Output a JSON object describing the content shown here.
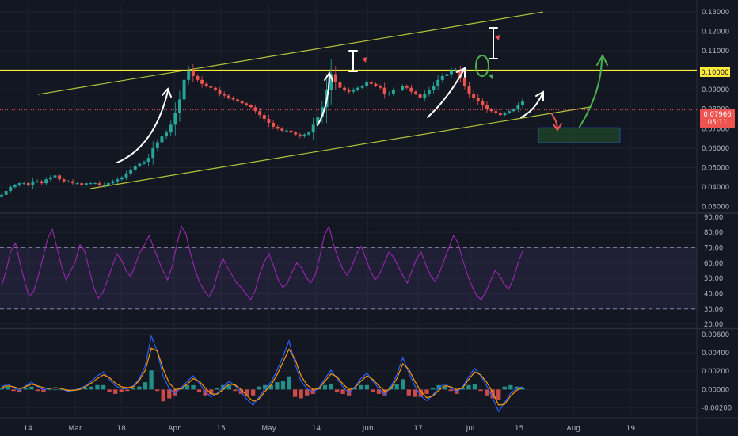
{
  "chart_data": [
    {
      "type": "candlestick",
      "title": "",
      "panel": "price",
      "price_scale": {
        "ticks": [
          "0.13000",
          "0.12000",
          "0.11000",
          "0.10000",
          "0.09000",
          "0.08000",
          "0.07000",
          "0.06000",
          "0.05000",
          "0.04000",
          "0.03000"
        ],
        "ylim": [
          0.027,
          0.134
        ]
      },
      "current_price": {
        "label": "0.07966",
        "value": 0.07966,
        "countdown": "05:11",
        "color": "#ef5350"
      },
      "horizontal_level": {
        "label": "0.10000",
        "value": 0.1,
        "color": "#ffeb3b"
      },
      "series": [
        {
          "name": "",
          "values": [
            0.036,
            0.038,
            0.04,
            0.041,
            0.042,
            0.042,
            0.041,
            0.043,
            0.043,
            0.042,
            0.044,
            0.045,
            0.046,
            0.044,
            0.043,
            0.043,
            0.042,
            0.042,
            0.041,
            0.042,
            0.042,
            0.042,
            0.041,
            0.041,
            0.042,
            0.043,
            0.044,
            0.045,
            0.047,
            0.049,
            0.051,
            0.052,
            0.053,
            0.055,
            0.06,
            0.063,
            0.066,
            0.068,
            0.072,
            0.078,
            0.085,
            0.095,
            0.1,
            0.097,
            0.095,
            0.093,
            0.092,
            0.091,
            0.09,
            0.088,
            0.087,
            0.086,
            0.085,
            0.084,
            0.083,
            0.082,
            0.081,
            0.079,
            0.077,
            0.075,
            0.073,
            0.071,
            0.07,
            0.069,
            0.069,
            0.068,
            0.067,
            0.066,
            0.067,
            0.068,
            0.072,
            0.076,
            0.081,
            0.09,
            0.098,
            0.094,
            0.091,
            0.09,
            0.089,
            0.09,
            0.091,
            0.092,
            0.094,
            0.093,
            0.092,
            0.091,
            0.088,
            0.088,
            0.09,
            0.09,
            0.092,
            0.091,
            0.089,
            0.088,
            0.086,
            0.088,
            0.09,
            0.092,
            0.095,
            0.097,
            0.098,
            0.1,
            0.1,
            0.096,
            0.092,
            0.088,
            0.086,
            0.084,
            0.082,
            0.08,
            0.079,
            0.078,
            0.077,
            0.078,
            0.079,
            0.08,
            0.082,
            0.084
          ]
        }
      ],
      "channel": {
        "upper_line": {
          "from": [
            0.45,
            0.088
          ],
          "to": [
            1,
            0.133
          ]
        }
      },
      "annotations": [
        "arrows",
        "range-markers",
        "target-box"
      ]
    },
    {
      "type": "line",
      "panel": "rsi",
      "ticks": [
        "90.00",
        "80.00",
        "70.00",
        "60.00",
        "50.00",
        "40.00",
        "30.00",
        "20.00"
      ],
      "ylim": [
        18,
        92
      ],
      "bands": {
        "upper": 70,
        "lower": 30
      },
      "color": "#9c27b0",
      "series": [
        {
          "name": "",
          "values": [
            45,
            55,
            68,
            73,
            60,
            48,
            38,
            42,
            52,
            64,
            76,
            82,
            70,
            58,
            49,
            55,
            61,
            72,
            68,
            56,
            44,
            37,
            41,
            49,
            58,
            66,
            62,
            55,
            51,
            59,
            67,
            72,
            78,
            70,
            62,
            55,
            49,
            58,
            72,
            84,
            79,
            66,
            55,
            47,
            42,
            38,
            44,
            55,
            63,
            57,
            52,
            47,
            44,
            40,
            36,
            42,
            53,
            61,
            66,
            58,
            49,
            44,
            47,
            54,
            60,
            57,
            51,
            47,
            52,
            64,
            78,
            84,
            72,
            63,
            56,
            52,
            58,
            66,
            71,
            63,
            55,
            49,
            53,
            60,
            67,
            64,
            58,
            52,
            47,
            55,
            63,
            67,
            59,
            52,
            48,
            54,
            62,
            70,
            78,
            73,
            62,
            53,
            45,
            39,
            36,
            41,
            48,
            55,
            52,
            46,
            43,
            50,
            60,
            68
          ]
        }
      ]
    },
    {
      "type": "line",
      "panel": "macd",
      "ticks": [
        "0.00600",
        "0.00400",
        "0.00200",
        "0.00000",
        "-0.00200"
      ],
      "ylim": [
        -0.0029,
        0.0065
      ],
      "series": [
        {
          "name": "",
          "color": "#2962ff",
          "values": [
            0.0003,
            0.0006,
            0.0002,
            -0.0001,
            0.0004,
            0.0008,
            0.0003,
            0,
            0.0001,
            0.0002,
            0.0001,
            -0.0002,
            -0.0001,
            0.0001,
            0.0004,
            0.0009,
            0.0015,
            0.0019,
            0.0011,
            0.0004,
            0.0001,
            0.0001,
            0.0004,
            0.0012,
            0.0026,
            0.0058,
            0.0041,
            0.0014,
            0.0001,
            -0.0004,
            0.0002,
            0.0009,
            0.0015,
            0.0007,
            -0.0002,
            -0.0008,
            -0.0004,
            0.0003,
            0.0009,
            0.0004,
            -0.0003,
            -0.0011,
            -0.0017,
            -0.0008,
            0.0001,
            0.0008,
            0.0021,
            0.0036,
            0.0053,
            0.0028,
            0.0009,
            0.0001,
            -0.0003,
            0.0002,
            0.0012,
            0.0021,
            0.0012,
            0.0003,
            -0.0004,
            0.0003,
            0.0012,
            0.0018,
            0.0009,
            0.0001,
            -0.0006,
            0.0003,
            0.0016,
            0.0035,
            0.0018,
            0.0004,
            -0.0007,
            -0.0012,
            -0.0006,
            0.0002,
            0.0006,
            0.0002,
            -0.0003,
            0.0003,
            0.0014,
            0.0023,
            0.0015,
            0.0004,
            -0.0009,
            -0.0024,
            -0.0014,
            -0.0004,
            0.0001,
            0.0003
          ]
        },
        {
          "name": "",
          "color": "#ff9800",
          "values": [
            0.0002,
            0.0004,
            0.0003,
            0.0001,
            0.0003,
            0.0006,
            0.0004,
            0.0002,
            0.0001,
            0.0002,
            0.0001,
            -0.0001,
            -0.0001,
            0,
            0.0003,
            0.0007,
            0.0012,
            0.0016,
            0.0013,
            0.0007,
            0.0003,
            0.0002,
            0.0003,
            0.001,
            0.0021,
            0.0045,
            0.0042,
            0.0022,
            0.0007,
            0,
            0.0001,
            0.0006,
            0.0012,
            0.0009,
            0.0002,
            -0.0005,
            -0.0005,
            0,
            0.0006,
            0.0005,
            0,
            -0.0007,
            -0.0013,
            -0.001,
            -0.0002,
            0.0005,
            0.0016,
            0.003,
            0.0044,
            0.0033,
            0.0015,
            0.0005,
            0,
            0.0001,
            0.0009,
            0.0017,
            0.0014,
            0.0006,
            0,
            0.0002,
            0.0009,
            0.0015,
            0.0011,
            0.0004,
            -0.0002,
            0.0001,
            0.0012,
            0.0028,
            0.0022,
            0.0009,
            -0.0002,
            -0.0009,
            -0.0007,
            -0.0001,
            0.0004,
            0.0003,
            0,
            0.0002,
            0.0011,
            0.0019,
            0.0016,
            0.0008,
            -0.0003,
            -0.0017,
            -0.0016,
            -0.0007,
            -0.0001,
            0.0002
          ]
        }
      ]
    }
  ],
  "time_axis": {
    "labels": [
      "14",
      "Mar",
      "18",
      "Apr",
      "15",
      "May",
      "14",
      "Jun",
      "17",
      "Jul",
      "15",
      "Aug",
      "19"
    ],
    "positions": [
      0.04,
      0.108,
      0.174,
      0.25,
      0.317,
      0.386,
      0.454,
      0.528,
      0.6,
      0.675,
      0.745,
      0.823,
      0.905
    ]
  },
  "colors": {
    "background": "#131722",
    "grid": "#1e222d",
    "bull": "#26a69a",
    "bear": "#ef5350",
    "axis_text": "#b2b5be"
  }
}
